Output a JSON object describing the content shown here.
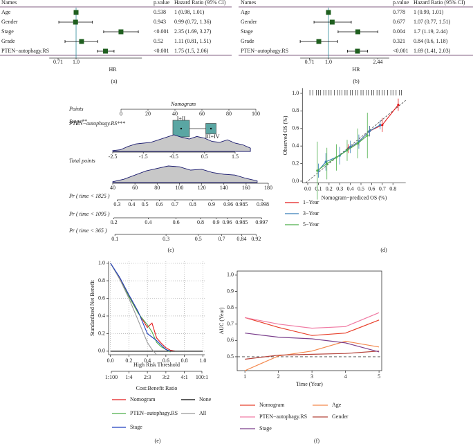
{
  "chart_data": [
    {
      "type": "forest",
      "panel_label": "(a)",
      "columns": [
        "Names",
        "p.value",
        "Hazard Ratio (95% CI)"
      ],
      "categories": [
        "Age",
        "Gender",
        "Stage",
        "Grade",
        "PTEN−autophagy.RS"
      ],
      "p_values": [
        "0.538",
        "0.943",
        "<0.001",
        "0.52",
        "<0.001"
      ],
      "values": [
        1,
        0.99,
        2.35,
        1.11,
        1.75
      ],
      "lower": [
        0.98,
        0.72,
        1.69,
        0.81,
        1.5
      ],
      "upper": [
        1.01,
        1.36,
        3.27,
        1.51,
        2.06
      ],
      "value_labels": [
        "1 (0.98, 1.01)",
        "0.99 (0.72, 1.36)",
        "2.35 (1.69, 3.27)",
        "1.11 (0.81, 1.51)",
        "1.75 (1.5, 2.06)"
      ],
      "xlabel": "HR",
      "log_x": true,
      "xlim": [
        0.6,
        3.5
      ],
      "xticks": [
        0.71,
        {
          "value": 1,
          "label": "1.0"
        }
      ],
      "ref_line": 1,
      "color": "#1f5f1f",
      "ref_color": "#2b8a9a"
    },
    {
      "type": "forest",
      "panel_label": "(b)",
      "columns": [
        "Names",
        "p.value",
        "Hazard Ratio (95% CI)"
      ],
      "categories": [
        "Age",
        "Gender",
        "Stage",
        "Grade",
        "PTEN−autophagy.RS"
      ],
      "p_values": [
        "0.778",
        "0.677",
        "0.004",
        "0.321",
        "<0.001"
      ],
      "values": [
        1,
        1.07,
        1.7,
        0.84,
        1.69
      ],
      "lower": [
        0.99,
        0.77,
        1.19,
        0.6,
        1.41
      ],
      "upper": [
        1.01,
        1.51,
        2.44,
        1.18,
        2.03
      ],
      "value_labels": [
        "1 (0.99, 1.01)",
        "1.07 (0.77, 1.51)",
        "1.7 (1.19, 2.44)",
        "0.84 (0.6, 1.18)",
        "1.69 (1.41, 2.03)"
      ],
      "xlabel": "HR",
      "log_x": true,
      "xlim": [
        0.6,
        3
      ],
      "xticks": [
        0.71,
        {
          "value": 1,
          "label": "1.0"
        },
        2.44
      ],
      "ref_line": 1,
      "color": "#1f5f1f",
      "ref_color": "#2b8a9a"
    },
    {
      "type": "nomogram",
      "panel_label": "(c)",
      "title": "Nomogram",
      "color": "#5aa6a3",
      "points": {
        "label": "Points",
        "xlim": [
          0,
          100
        ],
        "xticks": [
          0,
          20,
          40,
          60,
          80,
          100
        ]
      },
      "stage": {
        "label": "Stage**",
        "categories": [
          "I+II",
          "III+IV"
        ],
        "points": [
          44.6,
          66.7
        ]
      },
      "score": {
        "label": "PTEN−autophagy.RS***",
        "xlim": [
          -2.5,
          1.5
        ],
        "xticks": [
          -2.5,
          -1.5,
          -0.5,
          0.5,
          1.5
        ],
        "density_x": [
          -2.5,
          -2.25,
          -2,
          -1.75,
          -1.5,
          -1.25,
          -1,
          -0.75,
          -0.5,
          -0.25,
          0,
          0.25,
          0.5,
          0.75,
          1,
          1.25,
          1.5,
          1.75,
          2
        ],
        "density": [
          0.05,
          0.1,
          0.3,
          0.45,
          0.5,
          0.55,
          0.7,
          0.85,
          1,
          0.85,
          0.75,
          0.9,
          0.8,
          0.6,
          0.55,
          0.7,
          0.5,
          0.4,
          0.2
        ]
      },
      "total": {
        "label": "Total points",
        "xlim": [
          40,
          180
        ],
        "xticks": [
          40,
          60,
          80,
          100,
          120,
          140,
          160,
          180
        ],
        "density_x": [
          40,
          50,
          60,
          70,
          80,
          90,
          100,
          110,
          120,
          130,
          140,
          150,
          160,
          170
        ],
        "density": [
          0.05,
          0.2,
          0.45,
          0.7,
          0.85,
          1,
          0.95,
          0.75,
          0.8,
          0.6,
          0.5,
          0.45,
          0.25,
          0.1
        ]
      },
      "probabilities": [
        {
          "label": "Pr ( time < 1825 )",
          "xticks": [
            0.3,
            0.4,
            0.5,
            0.6,
            0.7,
            0.8,
            0.9,
            0.96,
            0.985,
            0.998
          ],
          "total_points": [
            44,
            57,
            69,
            82,
            96,
            112,
            129,
            144,
            156,
            175
          ]
        },
        {
          "label": "Pr ( time < 1095 )",
          "xticks": [
            0.2,
            0.4,
            0.6,
            0.8,
            0.9,
            0.96,
            0.985,
            0.997
          ],
          "total_points": [
            41,
            72,
            97,
            119,
            133,
            143,
            156,
            174
          ]
        },
        {
          "label": "Pr ( time < 365 )",
          "xticks": [
            0.1,
            0.3,
            0.5,
            0.7,
            0.84,
            0.92
          ],
          "total_points": [
            42,
            88,
            117,
            138,
            156,
            169
          ]
        }
      ]
    },
    {
      "type": "calibration",
      "panel_label": "(d)",
      "xlabel": "Nomogram−prediced OS (%)",
      "ylabel": "Observed OS (%)",
      "xlim": [
        -0.05,
        0.92
      ],
      "ylim": [
        -0.02,
        1.06
      ],
      "xticks": [
        {
          "value": 0,
          "label": "0.0"
        },
        0.1,
        0.2,
        0.3,
        0.4,
        0.5,
        0.6,
        0.7,
        0.8
      ],
      "yticks": [
        {
          "value": 0,
          "label": "0.0"
        },
        0.2,
        0.4,
        0.6,
        0.8,
        {
          "value": 1,
          "label": "1.0"
        }
      ],
      "ref_diagonal": true,
      "rug": [
        0.02,
        0.05,
        0.08,
        0.1,
        0.12,
        0.15,
        0.17,
        0.2,
        0.22,
        0.25,
        0.28,
        0.3,
        0.32,
        0.35,
        0.37,
        0.4,
        0.42,
        0.45,
        0.47,
        0.5,
        0.52,
        0.55,
        0.57,
        0.6,
        0.62,
        0.65,
        0.67,
        0.7,
        0.72,
        0.75,
        0.78,
        0.8,
        0.83,
        0.86,
        0.88
      ],
      "series": [
        {
          "name": "1−Year",
          "color": "#e41a1c",
          "x": [
            0.38,
            0.48,
            0.58,
            0.7,
            0.85
          ],
          "values": [
            0.37,
            0.45,
            0.57,
            0.64,
            0.87
          ],
          "errors": [
            0.05,
            0.05,
            0.06,
            0.08,
            0.07
          ]
        },
        {
          "name": "3−Year",
          "color": "#377eb8",
          "x": [
            0.1,
            0.17,
            0.3,
            0.4,
            0.48,
            0.58,
            0.68
          ],
          "values": [
            0.12,
            0.22,
            0.29,
            0.39,
            0.45,
            0.57,
            0.64
          ],
          "errors": [
            0.08,
            0.1,
            0.1,
            0.07,
            0.08,
            0.06,
            0.05
          ]
        },
        {
          "name": "5−Year",
          "color": "#4daf4a",
          "x": [
            0.09,
            0.18,
            0.27,
            0.37,
            0.47,
            0.56
          ],
          "values": [
            0.12,
            0.2,
            0.27,
            0.35,
            0.43,
            0.52
          ],
          "errors": [
            0.33,
            0.18,
            0.15,
            0.12,
            0.17,
            0.26
          ]
        }
      ]
    },
    {
      "type": "dca",
      "panel_label": "(e)",
      "xlabel": "High Risk Threshold",
      "ylabel": "Standardized Net Benefit",
      "x2label": "Cost:Benefit Ratio",
      "xlim": [
        -0.02,
        1.02
      ],
      "ylim": [
        -0.04,
        1.02
      ],
      "grid": true,
      "xticks": [
        {
          "value": 0,
          "label": "0.0"
        },
        0.2,
        0.4,
        0.6,
        0.8,
        {
          "value": 1,
          "label": "1.0"
        }
      ],
      "yticks": [
        {
          "value": 0,
          "label": "0.0"
        },
        0.2,
        0.4,
        0.6,
        0.8,
        {
          "value": 1,
          "label": "1.0"
        }
      ],
      "x2ticks": [
        {
          "value": 0.01,
          "label": "1:100"
        },
        {
          "value": 0.2,
          "label": "1:4"
        },
        {
          "value": 0.4,
          "label": "2:3"
        },
        {
          "value": 0.6,
          "label": "3:2"
        },
        {
          "value": 0.8,
          "label": "4:1"
        },
        {
          "value": 0.99,
          "label": "100:1"
        }
      ],
      "x": [
        0,
        0.1,
        0.2,
        0.3,
        0.4,
        0.45,
        0.5,
        0.55,
        0.6,
        0.65,
        0.7,
        1
      ],
      "series": [
        {
          "name": "Nomogram",
          "color": "#e41a1c",
          "values": [
            1,
            0.83,
            0.63,
            0.44,
            0.27,
            0.32,
            0.15,
            0.09,
            0.04,
            0.01,
            0,
            null
          ]
        },
        {
          "name": "None",
          "color": "#000000",
          "values": [
            0,
            0,
            0,
            0,
            0,
            0,
            0,
            0,
            0,
            0,
            0,
            0
          ]
        },
        {
          "name": "PTEN−autophagy.RS",
          "color": "#4daf4a",
          "values": [
            1,
            0.82,
            0.62,
            0.43,
            0.3,
            0.22,
            0.1,
            0.05,
            0.02,
            -0.01,
            null,
            null
          ]
        },
        {
          "name": "All",
          "color": "#999999",
          "values": [
            1,
            0.82,
            0.6,
            0.35,
            0.1,
            0.02,
            -0.04,
            null,
            null,
            null,
            null,
            null
          ]
        },
        {
          "name": "Stage",
          "color": "#1f3fbf",
          "values": [
            1,
            0.84,
            0.64,
            0.45,
            0.2,
            0.16,
            0.12,
            0.07,
            0.02,
            0,
            null,
            null
          ]
        }
      ]
    },
    {
      "type": "line",
      "panel_label": "(f)",
      "xlabel": "Time (Year)",
      "ylabel": "AUC (Year)",
      "xlim": [
        0.77,
        5.08
      ],
      "ylim": [
        0.415,
        1.025
      ],
      "ref_line": 0.5,
      "xticks": [
        1,
        2,
        3,
        4,
        5
      ],
      "yticks": [
        0.5,
        0.6,
        0.7,
        0.8,
        0.9,
        {
          "value": 1,
          "label": "1.0"
        }
      ],
      "x": [
        1,
        2,
        3,
        4,
        5
      ],
      "series": [
        {
          "name": "Nomogram",
          "color": "#e8412c",
          "values": [
            0.74,
            0.68,
            0.63,
            0.645,
            0.725
          ]
        },
        {
          "name": "Age",
          "color": "#f4874b",
          "values": [
            0.415,
            0.505,
            0.535,
            0.595,
            0.56
          ]
        },
        {
          "name": "PTEN−autophagy.RS",
          "color": "#f07aa3",
          "values": [
            0.74,
            0.7,
            0.675,
            0.685,
            0.77
          ]
        },
        {
          "name": "Gender",
          "color": "#b5433b",
          "values": [
            0.485,
            0.51,
            0.515,
            0.52,
            0.535
          ]
        },
        {
          "name": "Stage",
          "color": "#7b3f8c",
          "values": [
            0.645,
            0.62,
            0.61,
            0.585,
            0.53
          ]
        }
      ]
    }
  ]
}
